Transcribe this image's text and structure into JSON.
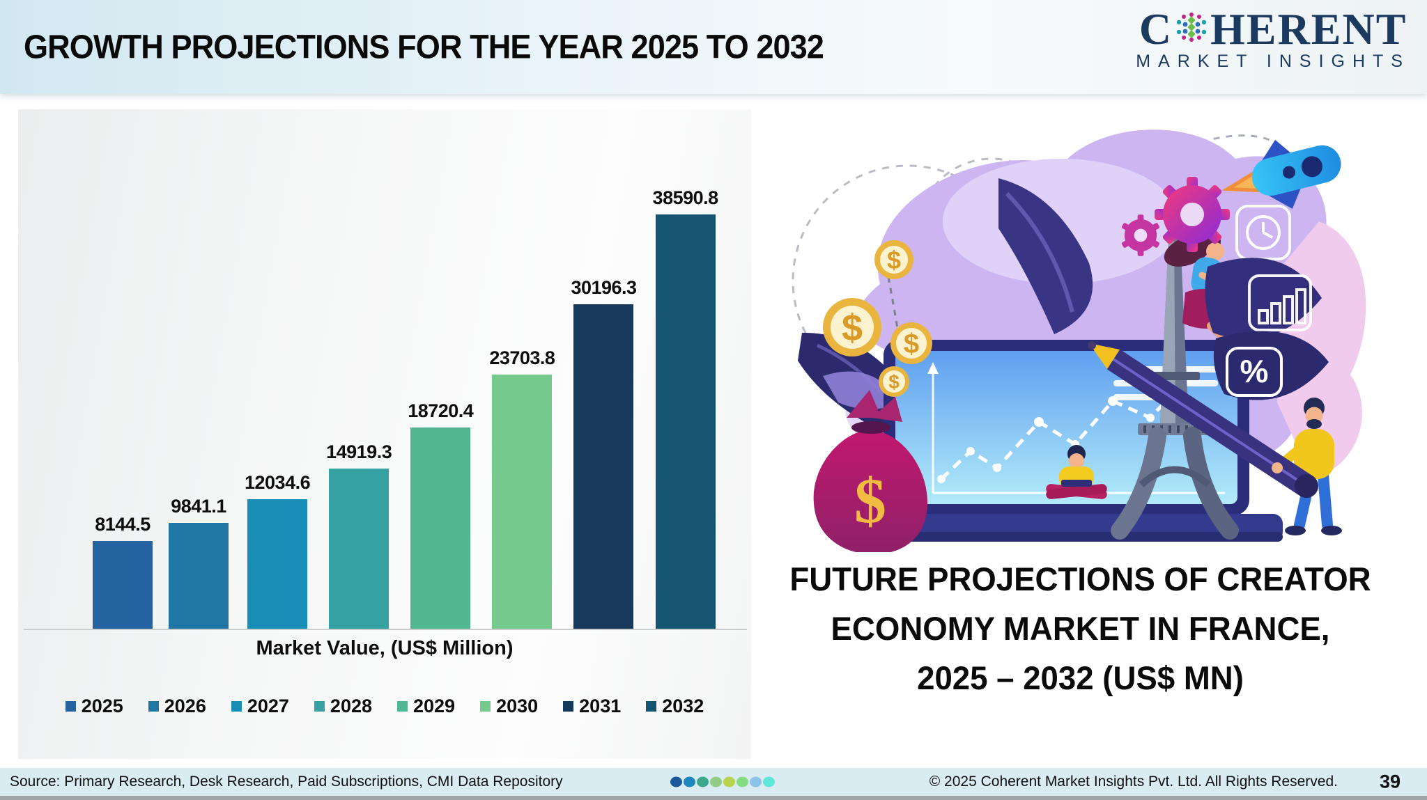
{
  "header": {
    "title": "GROWTH PROJECTIONS FOR THE YEAR 2025 TO 2032",
    "logo": {
      "part1": "C",
      "part2": "HERENT",
      "subtitle": "MARKET INSIGHTS"
    }
  },
  "chart_data": {
    "type": "bar",
    "categories": [
      "2025",
      "2026",
      "2027",
      "2028",
      "2029",
      "2030",
      "2031",
      "2032"
    ],
    "values": [
      8144.5,
      9841.1,
      12034.6,
      14919.3,
      18720.4,
      23703.8,
      30196.3,
      38590.8
    ],
    "colors": [
      "#2563a0",
      "#2177a4",
      "#188db5",
      "#35a1a3",
      "#53b693",
      "#76c98c",
      "#17395c",
      "#155571"
    ],
    "xlabel": "Market Value, (US$ Million)",
    "ylim": [
      0,
      38590.8
    ],
    "grid": false,
    "legend_position": "bottom",
    "value_labels": true
  },
  "right_panel": {
    "title_lines": [
      "FUTURE PROJECTIONS OF CREATOR",
      "ECONOMY MARKET IN FRANCE,",
      "2025 – 2032 (US$ MN)"
    ]
  },
  "illustration": {
    "percent_label": "%",
    "dollar_symbol": "$"
  },
  "footer": {
    "source": "Source: Primary Research, Desk Research, Paid Subscriptions, CMI Data Repository",
    "copyright": "© 2025 Coherent Market Insights Pvt. Ltd. All Rights Reserved.",
    "page_number": "39",
    "dots": [
      "#1d5a9a",
      "#1e87c0",
      "#3ba88c",
      "#93cd85",
      "#b8d44d",
      "#86dc80",
      "#8fc2e9",
      "#5ee6da"
    ]
  }
}
